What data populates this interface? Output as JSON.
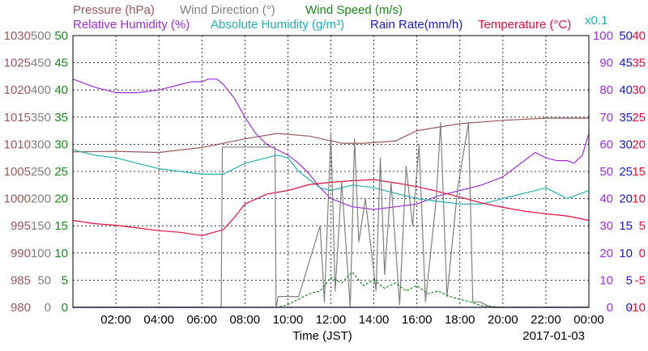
{
  "chart_data": {
    "type": "line",
    "date_label": "2017-01-03",
    "xlabel": "Time (JST)",
    "x_ticks": [
      "02:00",
      "04:00",
      "06:00",
      "08:00",
      "10:00",
      "12:00",
      "14:00",
      "16:00",
      "18:00",
      "20:00",
      "22:00",
      "00:00"
    ],
    "x_range_hours": [
      0,
      24
    ],
    "legend": [
      {
        "key": "pressure",
        "label": "Pressure (hPa)",
        "color": "#9a5a5a"
      },
      {
        "key": "wind_dir",
        "label": "Wind Direction (°)",
        "color": "#808080"
      },
      {
        "key": "wind_speed",
        "label": "Wind Speed (m/s)",
        "color": "#1a8a1a"
      },
      {
        "key": "humidity",
        "label": "Relative Humidity (%)",
        "color": "#9b30d9"
      },
      {
        "key": "abs_humidity",
        "label": "Absolute Humidity (g/m³)",
        "color": "#20b0b0"
      },
      {
        "key": "rain",
        "label": "Rain Rate(mm/h)",
        "color": "#1a1acc"
      },
      {
        "key": "temperature",
        "label": "Temperature (°C)",
        "color": "#e8103a"
      },
      {
        "key": "x01",
        "label": "x0.1",
        "color": "#20b0b0"
      }
    ],
    "axes": [
      {
        "key": "pressure",
        "color": "#9a5a5a",
        "range": [
          980,
          1030
        ],
        "ticks": [
          "1030",
          "1025",
          "1020",
          "1015",
          "1010",
          "1005",
          "1000",
          "995",
          "990",
          "985",
          "980"
        ]
      },
      {
        "key": "wind_dir",
        "color": "#808080",
        "range": [
          0,
          500
        ],
        "ticks": [
          "500",
          "450",
          "400",
          "350",
          "300",
          "250",
          "200",
          "150",
          "100",
          "50",
          "0"
        ]
      },
      {
        "key": "wind_speed",
        "color": "#1a8a1a",
        "range": [
          0,
          50
        ],
        "ticks": [
          "50",
          "45",
          "40",
          "35",
          "30",
          "25",
          "20",
          "15",
          "10",
          "5",
          "0"
        ]
      },
      {
        "key": "humidity",
        "color": "#9b30d9",
        "range": [
          0,
          100
        ],
        "ticks": [
          "100",
          "90",
          "80",
          "70",
          "60",
          "50",
          "40",
          "30",
          "20",
          "10",
          "0"
        ]
      },
      {
        "key": "rain",
        "color": "#1a1acc",
        "range": [
          0,
          50
        ],
        "ticks": [
          "50",
          "45",
          "40",
          "35",
          "30",
          "25",
          "20",
          "15",
          "10",
          "5",
          "0"
        ]
      },
      {
        "key": "temperature",
        "color": "#e8103a",
        "range": [
          -10,
          40
        ],
        "ticks": [
          "40",
          "35",
          "30",
          "25",
          "20",
          "15",
          "10",
          "5",
          "0",
          "-5",
          "-10"
        ]
      }
    ],
    "series": [
      {
        "name": "Pressure (hPa)",
        "key": "pressure",
        "color": "#9a5a5a",
        "x": [
          0,
          2,
          4,
          6,
          8,
          9.5,
          11,
          12.5,
          13.5,
          15,
          16,
          18,
          20,
          22,
          24
        ],
        "y": [
          1008.6,
          1008.7,
          1008.5,
          1009.4,
          1011.0,
          1012.0,
          1011.5,
          1010.2,
          1010.2,
          1010.6,
          1012.5,
          1013.8,
          1014.4,
          1014.8,
          1014.8
        ]
      },
      {
        "name": "Relative Humidity (%)",
        "key": "humidity",
        "color": "#9b30d9",
        "x": [
          0,
          1,
          2,
          3,
          4,
          5,
          5.5,
          6,
          6.3,
          6.7,
          7,
          7.5,
          8,
          8.5,
          9,
          9.5,
          10,
          10.5,
          11,
          11.5,
          12,
          13,
          14,
          15,
          16,
          17,
          18,
          19,
          20,
          20.5,
          21,
          21.5,
          22,
          22.5,
          23,
          23.3,
          23.7,
          24
        ],
        "y": [
          84,
          81,
          79,
          79,
          80,
          82,
          83,
          83,
          84,
          84,
          82,
          77,
          70,
          64,
          60,
          58,
          56,
          53,
          49,
          44,
          40,
          37,
          36,
          37,
          38,
          41,
          43,
          45,
          48,
          51,
          54,
          57,
          55,
          54,
          54,
          53,
          56,
          64
        ]
      },
      {
        "name": "Absolute Humidity (g/m³)",
        "key": "abs_humidity",
        "color": "#20b0b0",
        "x": [
          0,
          1,
          2,
          3,
          4,
          5,
          6,
          7,
          8,
          9,
          9.5,
          10,
          10.5,
          11,
          11.5,
          12,
          13,
          14,
          15,
          16,
          17,
          18,
          19,
          20,
          21,
          22,
          23,
          24
        ],
        "y": [
          58,
          56,
          55,
          53,
          51,
          50,
          49,
          49,
          53,
          55,
          56,
          55,
          50,
          47,
          44,
          43,
          45,
          44,
          42,
          40,
          39,
          38,
          38,
          40,
          42,
          44,
          40,
          43
        ]
      },
      {
        "name": "Temperature (°C)",
        "key": "temperature",
        "color": "#e8103a",
        "x": [
          0,
          1,
          2,
          3,
          4,
          5,
          6,
          7,
          7.5,
          8,
          9,
          10,
          11,
          12,
          13,
          14,
          15,
          16,
          17,
          18,
          19,
          20,
          21,
          22,
          23,
          24
        ],
        "y": [
          6.0,
          5.4,
          5.1,
          4.6,
          4.1,
          3.8,
          3.2,
          4.3,
          6.5,
          9.0,
          10.8,
          11.5,
          12.6,
          13.0,
          13.3,
          13.5,
          12.9,
          12.2,
          11.3,
          10.3,
          9.2,
          8.4,
          7.7,
          7.2,
          6.8,
          6.0
        ]
      },
      {
        "name": "Wind Direction (°)",
        "key": "wind_dir",
        "color": "#808080",
        "x": [
          0,
          6.9,
          6.95,
          9.4,
          9.45,
          9.55,
          10.5,
          11.5,
          11.7,
          12.0,
          12.2,
          12.5,
          12.9,
          13.1,
          13.3,
          13.6,
          14.1,
          14.3,
          14.5,
          14.8,
          15.2,
          15.5,
          15.8,
          16.1,
          16.4,
          16.9,
          17.1,
          17.4,
          17.9,
          18.4,
          18.6,
          18.9,
          19.5,
          24
        ],
        "y": [
          0,
          0,
          295,
          295,
          0,
          20,
          20,
          150,
          10,
          320,
          30,
          230,
          0,
          310,
          120,
          200,
          30,
          275,
          60,
          230,
          5,
          260,
          150,
          300,
          10,
          200,
          340,
          20,
          220,
          340,
          10,
          10,
          0,
          0
        ]
      },
      {
        "name": "Wind Speed (m/s)",
        "key": "wind_speed",
        "color": "#1a8a1a",
        "x": [
          0,
          9.5,
          10,
          10.5,
          11,
          11.5,
          12,
          12.5,
          13,
          13.5,
          14,
          14.5,
          15,
          15.5,
          16,
          16.5,
          17,
          17.5,
          18,
          18.5,
          19,
          20,
          24
        ],
        "y": [
          0,
          0,
          0.5,
          1.5,
          2.5,
          3.0,
          5.5,
          4.5,
          6.5,
          4.0,
          5.0,
          3.5,
          4.5,
          3.0,
          4.0,
          2.5,
          3.0,
          2.0,
          1.5,
          1.0,
          0.3,
          0,
          0
        ]
      },
      {
        "name": "Rain Rate(mm/h)",
        "key": "rain",
        "color": "#1a1acc",
        "x": [
          0,
          24
        ],
        "y": [
          0,
          0
        ]
      }
    ]
  }
}
